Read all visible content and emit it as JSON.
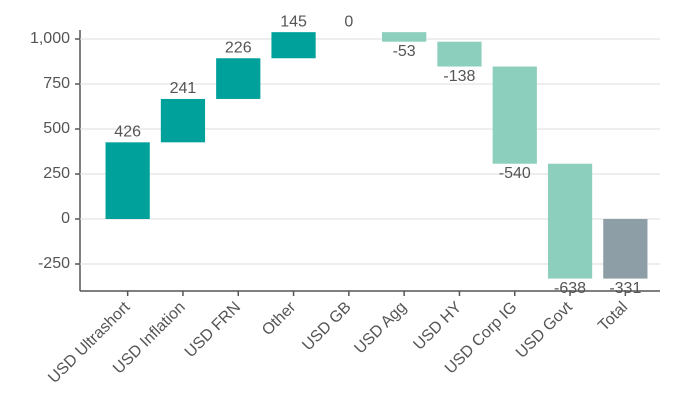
{
  "chart_data": {
    "type": "waterfall",
    "categories": [
      "USD Ultrashort",
      "USD Inflation",
      "USD FRN",
      "Other",
      "USD GB",
      "USD Agg",
      "USD HY",
      "USD Corp IG",
      "USD Govt",
      "Total"
    ],
    "values": [
      426,
      241,
      226,
      145,
      0,
      -53,
      -138,
      -540,
      -638,
      -331
    ],
    "increase_color": "#00a19b",
    "decrease_color": "#8dcfbd",
    "total_color": "#8e9ea6",
    "ylim": [
      -400,
      1050
    ],
    "yticks": [
      {
        "value": 1000,
        "label": "1,000"
      },
      750,
      500,
      250,
      0,
      -250
    ],
    "grid": true
  }
}
